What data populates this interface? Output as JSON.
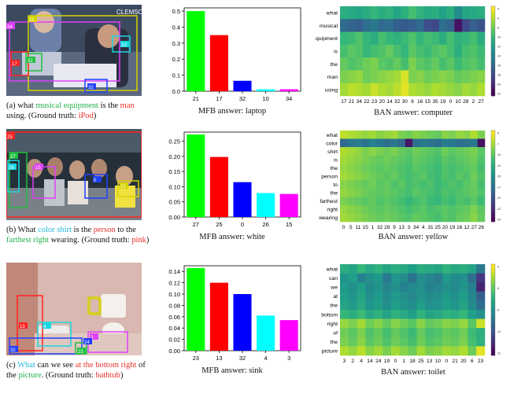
{
  "panels": [
    {
      "photo": {
        "watermark": "CLEMSON",
        "boxes": [
          {
            "label": "34",
            "color": "#e040fb"
          },
          {
            "label": "21",
            "color": "#d4d400"
          },
          {
            "label": "17",
            "color": "#ff2020"
          },
          {
            "label": "10",
            "color": "#18d8e0"
          },
          {
            "label": "32",
            "color": "#2040ff"
          },
          {
            "label": "32",
            "color": "#20c040"
          }
        ]
      },
      "caption": [
        {
          "t": "(a) what ",
          "c": "black"
        },
        {
          "t": "musical equipment",
          "c": "green"
        },
        {
          "t": " is the ",
          "c": "black"
        },
        {
          "t": "man",
          "c": "red"
        },
        {
          "t": " using. (Ground truth: ",
          "c": "black"
        },
        {
          "t": "iPod",
          "c": "red"
        },
        {
          "t": ")",
          "c": "black"
        }
      ],
      "bar_caption": "MFB answer: laptop",
      "heat_caption": "BAN answer: computer"
    },
    {
      "photo": {
        "watermark": "",
        "boxes": [
          {
            "label": "25",
            "color": "#ff2020"
          },
          {
            "label": "27",
            "color": "#20c040"
          },
          {
            "label": "15",
            "color": "#e040fb"
          },
          {
            "label": "26",
            "color": "#18d8e0"
          },
          {
            "label": "0",
            "color": "#2040ff"
          },
          {
            "label": "15",
            "color": "#d4d400"
          }
        ]
      },
      "caption": [
        {
          "t": "(b) What ",
          "c": "black"
        },
        {
          "t": "color shirt",
          "c": "cyan"
        },
        {
          "t": " is the ",
          "c": "black"
        },
        {
          "t": "person",
          "c": "red"
        },
        {
          "t": " to the ",
          "c": "black"
        },
        {
          "t": "farthest right",
          "c": "green"
        },
        {
          "t": " wearing. (Ground truth: ",
          "c": "black"
        },
        {
          "t": "pink",
          "c": "red"
        },
        {
          "t": ")",
          "c": "black"
        }
      ],
      "bar_caption": "MFB answer: white",
      "heat_caption": "BAN answer: yellow"
    },
    {
      "photo": {
        "watermark": "",
        "boxes": [
          {
            "label": "13",
            "color": "#ff2020"
          },
          {
            "label": "3",
            "color": "#e040fb"
          },
          {
            "label": "4",
            "color": "#18d8e0"
          },
          {
            "label": "32",
            "color": "#2040ff"
          },
          {
            "label": "23",
            "color": "#20c040"
          },
          {
            "label": "24",
            "color": "#d4d400"
          }
        ]
      },
      "caption": [
        {
          "t": "(c) ",
          "c": "black"
        },
        {
          "t": "What",
          "c": "cyan"
        },
        {
          "t": " can we see ",
          "c": "black"
        },
        {
          "t": "at the bottom right",
          "c": "red"
        },
        {
          "t": " of the ",
          "c": "black"
        },
        {
          "t": "picture",
          "c": "green"
        },
        {
          "t": ". (Ground truth: ",
          "c": "black"
        },
        {
          "t": "bathtub",
          "c": "red"
        },
        {
          "t": ")",
          "c": "black"
        }
      ],
      "bar_caption": "MFB answer: sink",
      "heat_caption": "BAN answer: toilet"
    }
  ],
  "chart_data": [
    {
      "type": "bar",
      "categories": [
        "21",
        "17",
        "32",
        "10",
        "34"
      ],
      "values": [
        0.5,
        0.35,
        0.065,
        0.012,
        0.012
      ],
      "colors": [
        "#00ff00",
        "#ff0000",
        "#0000ff",
        "#00ffff",
        "#ff00ff"
      ],
      "ylim": [
        0,
        0.52
      ],
      "yticks": [
        "0.0",
        "0.1",
        "0.2",
        "0.3",
        "0.4",
        "0.5"
      ],
      "ytick_values": [
        0,
        0.1,
        0.2,
        0.3,
        0.4,
        0.5
      ],
      "grid": false
    },
    {
      "type": "heatmap",
      "row_labels": [
        "what",
        "musical",
        "quipment",
        "is",
        "the",
        "man",
        "using"
      ],
      "col_labels": [
        "17",
        "21",
        "34",
        "22",
        "23",
        "20",
        "14",
        "32",
        "30",
        "6",
        "16",
        "15",
        "35",
        "19",
        "0",
        "10",
        "28",
        "2",
        "27"
      ],
      "colormap": "viridis",
      "colorbar_ticks": [
        "-4",
        "-6",
        "-8",
        "-10",
        "-12",
        "-14",
        "-16",
        "-18",
        "-20",
        "-22"
      ],
      "values": [
        [
          0.62,
          0.6,
          0.58,
          0.61,
          0.66,
          0.62,
          0.64,
          0.58,
          0.63,
          0.7,
          0.64,
          0.6,
          0.62,
          0.57,
          0.62,
          0.48,
          0.58,
          0.6,
          0.62
        ],
        [
          0.34,
          0.32,
          0.3,
          0.36,
          0.4,
          0.34,
          0.36,
          0.3,
          0.28,
          0.3,
          0.34,
          0.24,
          0.22,
          0.36,
          0.32,
          0.05,
          0.22,
          0.3,
          0.26
        ],
        [
          0.66,
          0.68,
          0.72,
          0.66,
          0.62,
          0.7,
          0.66,
          0.64,
          0.68,
          0.72,
          0.66,
          0.7,
          0.68,
          0.62,
          0.7,
          0.64,
          0.66,
          0.7,
          0.62
        ],
        [
          0.7,
          0.74,
          0.72,
          0.66,
          0.7,
          0.72,
          0.76,
          0.7,
          0.66,
          0.74,
          0.7,
          0.68,
          0.72,
          0.74,
          0.7,
          0.62,
          0.7,
          0.72,
          0.68
        ],
        [
          0.76,
          0.72,
          0.74,
          0.78,
          0.8,
          0.74,
          0.72,
          0.76,
          0.7,
          0.8,
          0.74,
          0.72,
          0.76,
          0.7,
          0.74,
          0.68,
          0.72,
          0.74,
          0.7
        ],
        [
          0.8,
          0.82,
          0.84,
          0.78,
          0.8,
          0.82,
          0.84,
          0.86,
          0.94,
          0.8,
          0.82,
          0.78,
          0.8,
          0.82,
          0.8,
          0.76,
          0.78,
          0.8,
          0.82
        ],
        [
          0.86,
          0.9,
          0.88,
          0.86,
          0.92,
          0.88,
          0.86,
          0.9,
          0.96,
          0.88,
          0.86,
          0.84,
          0.88,
          0.86,
          0.84,
          0.82,
          0.86,
          0.84,
          0.88
        ]
      ]
    },
    {
      "type": "bar",
      "categories": [
        "27",
        "25",
        "0",
        "26",
        "15"
      ],
      "values": [
        0.272,
        0.198,
        0.115,
        0.079,
        0.076
      ],
      "colors": [
        "#00ff00",
        "#ff0000",
        "#0000ff",
        "#00ffff",
        "#ff00ff"
      ],
      "ylim": [
        0,
        0.28
      ],
      "yticks": [
        "0.00",
        "0.05",
        "0.10",
        "0.15",
        "0.20",
        "0.25"
      ],
      "ytick_values": [
        0,
        0.05,
        0.1,
        0.15,
        0.2,
        0.25
      ],
      "grid": false
    },
    {
      "type": "heatmap",
      "row_labels": [
        "what",
        "color",
        "shirt",
        "is",
        "the",
        "person",
        "to",
        "the",
        "farthest",
        "right",
        "wearing"
      ],
      "col_labels": [
        "0",
        "5",
        "11",
        "15",
        "1",
        "32",
        "29",
        "9",
        "13",
        "3",
        "34",
        "4",
        "31",
        "25",
        "20",
        "19",
        "16",
        "12",
        "27",
        "26"
      ],
      "colormap": "viridis",
      "colorbar_ticks": [
        "-5",
        "-7",
        "-10",
        "-12",
        "-15",
        "-17",
        "-20",
        "-22",
        "-25"
      ],
      "values": [
        [
          0.9,
          0.88,
          0.86,
          0.84,
          0.86,
          0.82,
          0.84,
          0.86,
          0.8,
          0.78,
          0.82,
          0.8,
          0.78,
          0.76,
          0.82,
          0.8,
          0.84,
          0.82,
          0.88,
          0.8
        ],
        [
          0.34,
          0.4,
          0.42,
          0.38,
          0.44,
          0.4,
          0.36,
          0.4,
          0.34,
          0.06,
          0.36,
          0.4,
          0.38,
          0.36,
          0.42,
          0.4,
          0.36,
          0.38,
          0.4,
          0.04
        ],
        [
          0.88,
          0.86,
          0.84,
          0.8,
          0.82,
          0.8,
          0.78,
          0.8,
          0.76,
          0.74,
          0.78,
          0.76,
          0.74,
          0.72,
          0.78,
          0.74,
          0.76,
          0.78,
          0.8,
          0.74
        ],
        [
          0.86,
          0.84,
          0.82,
          0.8,
          0.78,
          0.76,
          0.78,
          0.76,
          0.74,
          0.72,
          0.76,
          0.74,
          0.72,
          0.7,
          0.74,
          0.72,
          0.74,
          0.76,
          0.78,
          0.72
        ],
        [
          0.84,
          0.82,
          0.8,
          0.78,
          0.76,
          0.74,
          0.76,
          0.74,
          0.72,
          0.7,
          0.74,
          0.72,
          0.7,
          0.68,
          0.72,
          0.7,
          0.72,
          0.74,
          0.76,
          0.7
        ],
        [
          0.86,
          0.84,
          0.82,
          0.8,
          0.78,
          0.76,
          0.74,
          0.76,
          0.72,
          0.7,
          0.72,
          0.74,
          0.7,
          0.68,
          0.72,
          0.7,
          0.74,
          0.72,
          0.78,
          0.72
        ],
        [
          0.82,
          0.8,
          0.78,
          0.76,
          0.78,
          0.74,
          0.76,
          0.72,
          0.74,
          0.7,
          0.72,
          0.7,
          0.72,
          0.68,
          0.7,
          0.72,
          0.7,
          0.74,
          0.76,
          0.7
        ],
        [
          0.84,
          0.82,
          0.8,
          0.78,
          0.76,
          0.74,
          0.76,
          0.74,
          0.72,
          0.7,
          0.74,
          0.72,
          0.7,
          0.68,
          0.72,
          0.7,
          0.72,
          0.74,
          0.76,
          0.72
        ],
        [
          0.8,
          0.78,
          0.76,
          0.74,
          0.76,
          0.72,
          0.74,
          0.72,
          0.7,
          0.66,
          0.7,
          0.72,
          0.68,
          0.66,
          0.7,
          0.68,
          0.72,
          0.7,
          0.74,
          0.68
        ],
        [
          0.84,
          0.82,
          0.8,
          0.78,
          0.76,
          0.74,
          0.76,
          0.74,
          0.72,
          0.7,
          0.72,
          0.74,
          0.7,
          0.72,
          0.74,
          0.72,
          0.74,
          0.76,
          0.8,
          0.74
        ],
        [
          0.86,
          0.84,
          0.82,
          0.8,
          0.78,
          0.76,
          0.78,
          0.76,
          0.74,
          0.72,
          0.76,
          0.74,
          0.72,
          0.7,
          0.74,
          0.72,
          0.76,
          0.78,
          0.82,
          0.76
        ]
      ]
    },
    {
      "type": "bar",
      "categories": [
        "23",
        "13",
        "32",
        "4",
        "3"
      ],
      "values": [
        0.146,
        0.12,
        0.1,
        0.062,
        0.054
      ],
      "colors": [
        "#00ff00",
        "#ff0000",
        "#0000ff",
        "#00ffff",
        "#ff00ff"
      ],
      "ylim": [
        0,
        0.15
      ],
      "yticks": [
        "0.00",
        "0.02",
        "0.04",
        "0.06",
        "0.08",
        "0.10",
        "0.12",
        "0.14"
      ],
      "ytick_values": [
        0,
        0.02,
        0.04,
        0.06,
        0.08,
        0.1,
        0.12,
        0.14
      ],
      "grid": false
    },
    {
      "type": "heatmap",
      "row_labels": [
        "what",
        "can",
        "we",
        "at",
        "the",
        "bottom",
        "right",
        "of",
        "the",
        "picture"
      ],
      "col_labels": [
        "3",
        "2",
        "4",
        "14",
        "24",
        "19",
        "0",
        "1",
        "18",
        "25",
        "13",
        "10",
        "0",
        "21",
        "20",
        "6",
        "23"
      ],
      "colormap": "viridis",
      "colorbar_ticks": [
        "-4",
        "-6",
        "-8",
        "-10",
        "-12"
      ],
      "values": [
        [
          0.62,
          0.58,
          0.66,
          0.6,
          0.64,
          0.58,
          0.62,
          0.6,
          0.56,
          0.62,
          0.6,
          0.58,
          0.64,
          0.6,
          0.62,
          0.58,
          0.4
        ],
        [
          0.52,
          0.56,
          0.44,
          0.5,
          0.54,
          0.4,
          0.52,
          0.48,
          0.38,
          0.5,
          0.46,
          0.42,
          0.54,
          0.48,
          0.5,
          0.36,
          0.16
        ],
        [
          0.54,
          0.5,
          0.56,
          0.48,
          0.52,
          0.46,
          0.5,
          0.44,
          0.48,
          0.5,
          0.44,
          0.46,
          0.5,
          0.48,
          0.52,
          0.44,
          0.1
        ],
        [
          0.56,
          0.52,
          0.58,
          0.5,
          0.54,
          0.48,
          0.54,
          0.5,
          0.46,
          0.52,
          0.48,
          0.5,
          0.54,
          0.5,
          0.56,
          0.46,
          0.3
        ],
        [
          0.58,
          0.54,
          0.6,
          0.52,
          0.56,
          0.5,
          0.56,
          0.52,
          0.48,
          0.56,
          0.5,
          0.52,
          0.56,
          0.52,
          0.58,
          0.48,
          0.36
        ],
        [
          0.66,
          0.62,
          0.68,
          0.6,
          0.64,
          0.58,
          0.64,
          0.6,
          0.56,
          0.64,
          0.58,
          0.6,
          0.64,
          0.62,
          0.66,
          0.56,
          0.5
        ],
        [
          0.84,
          0.8,
          0.86,
          0.78,
          0.82,
          0.76,
          0.82,
          0.78,
          0.74,
          0.82,
          0.76,
          0.78,
          0.82,
          0.8,
          0.84,
          0.74,
          0.92
        ],
        [
          0.78,
          0.74,
          0.8,
          0.72,
          0.76,
          0.7,
          0.76,
          0.72,
          0.68,
          0.76,
          0.7,
          0.72,
          0.76,
          0.74,
          0.78,
          0.68,
          0.62
        ],
        [
          0.8,
          0.76,
          0.82,
          0.74,
          0.78,
          0.72,
          0.78,
          0.74,
          0.7,
          0.78,
          0.72,
          0.74,
          0.78,
          0.76,
          0.8,
          0.7,
          0.64
        ],
        [
          0.88,
          0.84,
          0.9,
          0.82,
          0.86,
          0.8,
          0.86,
          0.82,
          0.78,
          0.86,
          0.8,
          0.82,
          0.86,
          0.84,
          0.88,
          0.78,
          0.96
        ]
      ]
    }
  ]
}
